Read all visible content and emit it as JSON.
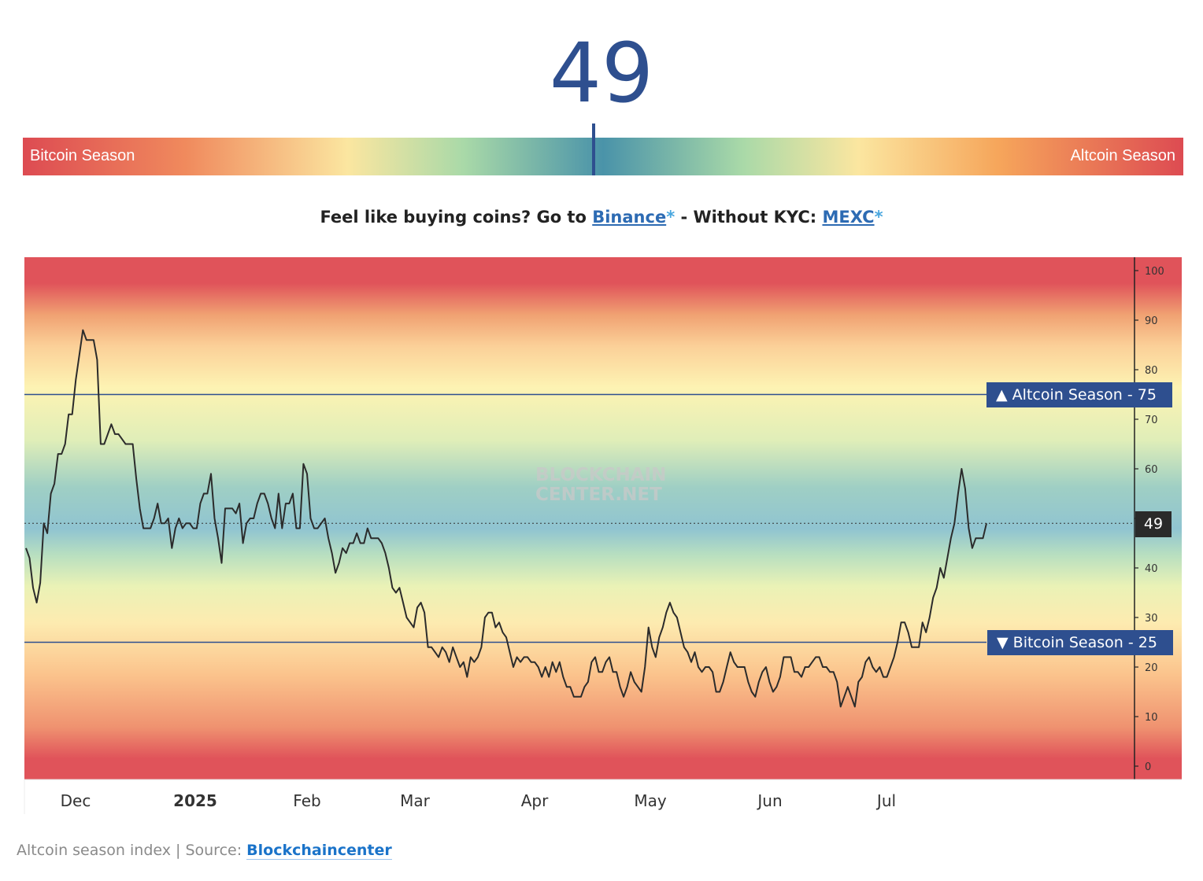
{
  "header": {
    "value": "49"
  },
  "gauge": {
    "left_label": "Bitcoin Season",
    "right_label": "Altcoin Season",
    "value": 49,
    "range": [
      0,
      100
    ]
  },
  "promo": {
    "prefix": "Feel like buying coins? Go to ",
    "link1": "Binance",
    "asterisk1": "*",
    "middle": " - Without KYC: ",
    "link2": "MEXC",
    "asterisk2": "*"
  },
  "watermark": {
    "line1": "BLOCKCHAIN",
    "line2": "CENTER.NET"
  },
  "caption": {
    "prefix": "Altcoin season index | Source: ",
    "source": "Blockchaincenter"
  },
  "colors": {
    "accent": "#2e4f8f",
    "line": "#2b2b2b",
    "current_badge": "#2a2a2a"
  },
  "chart_data": {
    "type": "line",
    "title": "",
    "xlabel": "",
    "ylabel": "",
    "ylim": [
      0,
      100
    ],
    "y_ticks": [
      100,
      90,
      80,
      70,
      60,
      50,
      40,
      30,
      20,
      10,
      0
    ],
    "x_tick_labels": [
      "Dec",
      "2025",
      "Feb",
      "Mar",
      "Apr",
      "May",
      "Jun",
      "Jul"
    ],
    "thresholds": [
      {
        "label": "Altcoin Season",
        "value": 75,
        "marker": "▲",
        "separator": " - "
      },
      {
        "label": "Bitcoin Season",
        "value": 25,
        "marker": "▼",
        "separator": " - "
      }
    ],
    "current": 49,
    "grid": false,
    "series": [
      {
        "values": [
          44,
          42,
          36,
          33,
          37,
          49,
          47,
          55,
          57,
          63,
          63,
          65,
          71,
          71,
          78,
          83,
          88,
          86,
          86,
          86,
          82,
          65,
          65,
          67,
          69,
          67,
          67,
          66,
          65,
          65,
          65,
          58,
          52,
          48,
          48,
          48,
          50,
          53,
          49,
          49,
          50,
          44,
          48,
          50,
          48,
          49,
          49,
          48,
          48,
          53,
          55,
          55,
          59,
          50,
          46,
          41,
          52,
          52,
          52,
          51,
          53,
          45,
          49,
          50,
          50,
          53,
          55,
          55,
          53,
          50,
          48,
          55,
          48,
          53,
          53,
          55,
          48,
          48,
          61,
          59,
          50,
          48,
          48,
          49,
          50,
          46,
          43,
          39,
          41,
          44,
          43,
          45,
          45,
          47,
          45,
          45,
          48,
          46,
          46,
          46,
          45,
          43,
          40,
          36,
          35,
          36,
          33,
          30,
          29,
          28,
          32,
          33,
          31,
          24,
          24,
          23,
          22,
          24,
          23,
          21,
          24,
          22,
          20,
          21,
          18,
          22,
          21,
          22,
          24,
          30,
          31,
          31,
          28,
          29,
          27,
          26,
          23,
          20,
          22,
          21,
          22,
          22,
          21,
          21,
          20,
          18,
          20,
          18,
          21,
          19,
          21,
          18,
          16,
          16,
          14,
          14,
          14,
          16,
          17,
          21,
          22,
          19,
          19,
          21,
          22,
          19,
          19,
          16,
          14,
          16,
          19,
          17,
          16,
          15,
          20,
          28,
          24,
          22,
          26,
          28,
          31,
          33,
          31,
          30,
          27,
          24,
          23,
          21,
          23,
          20,
          19,
          20,
          20,
          19,
          15,
          15,
          17,
          20,
          23,
          21,
          20,
          20,
          20,
          17,
          15,
          14,
          17,
          19,
          20,
          17,
          15,
          16,
          18,
          22,
          22,
          22,
          19,
          19,
          18,
          20,
          20,
          21,
          22,
          22,
          20,
          20,
          19,
          19,
          17,
          12,
          14,
          16,
          14,
          12,
          17,
          18,
          21,
          22,
          20,
          19,
          20,
          18,
          18,
          20,
          22,
          25,
          29,
          29,
          27,
          24,
          24,
          24,
          29,
          27,
          30,
          34,
          36,
          40,
          38,
          42,
          46,
          49,
          55,
          60,
          56,
          48,
          44,
          46,
          46,
          46,
          49
        ],
        "color": "#2b2b2b"
      }
    ]
  }
}
